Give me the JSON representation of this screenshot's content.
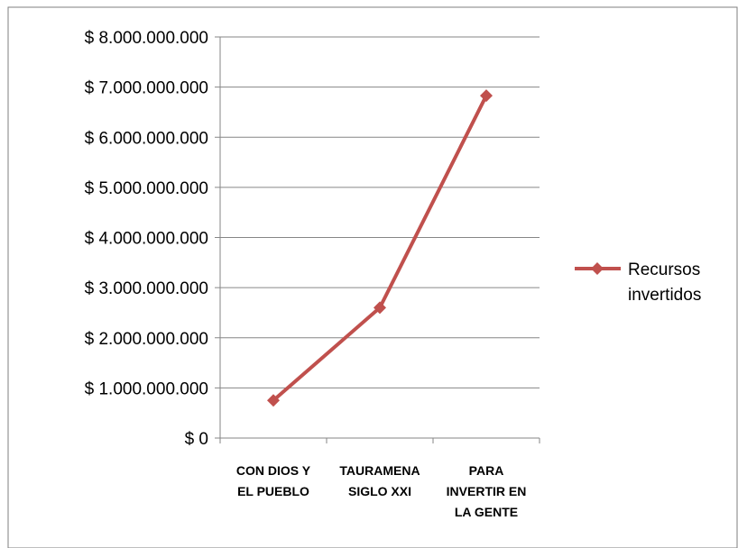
{
  "chart_data": {
    "type": "line",
    "categories": [
      [
        "CON DIOS Y",
        "EL PUEBLO"
      ],
      [
        "TAURAMENA",
        "SIGLO XXI"
      ],
      [
        "PARA",
        "INVERTIR EN",
        "LA GENTE"
      ]
    ],
    "series": [
      {
        "name": [
          "Recursos",
          "invertidos"
        ],
        "values": [
          750000000,
          2600000000,
          6830000000
        ],
        "color": "#c0504d"
      }
    ],
    "yticks": [
      "$ 0",
      "$ 1.000.000.000",
      "$ 2.000.000.000",
      "$ 3.000.000.000",
      "$ 4.000.000.000",
      "$ 5.000.000.000",
      "$ 6.000.000.000",
      "$ 7.000.000.000",
      "$ 8.000.000.000"
    ],
    "ylim": [
      0,
      8000000000
    ],
    "grid": true,
    "legend": "right",
    "marker": "diamond"
  }
}
